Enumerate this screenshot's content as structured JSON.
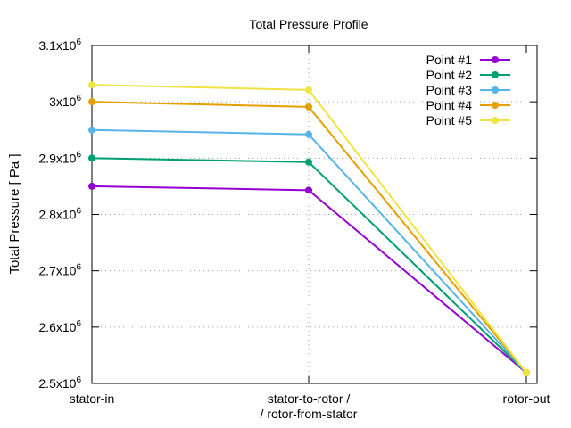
{
  "chart_data": {
    "type": "line",
    "title": "Total Pressure Profile",
    "xlabel": "",
    "ylabel": "Total Pressure [ Pa ]",
    "categories": [
      "stator-in",
      "stator-to-rotor /\n/ rotor-from-stator",
      "rotor-out"
    ],
    "category_lines": [
      [
        "stator-in"
      ],
      [
        "stator-to-rotor /",
        "/ rotor-from-stator"
      ],
      [
        "rotor-out"
      ]
    ],
    "ylim": [
      2500000,
      3100000
    ],
    "yticks": [
      2500000,
      2600000,
      2700000,
      2800000,
      2900000,
      3000000,
      3100000
    ],
    "ytick_labels": [
      [
        "2.5x10",
        "6"
      ],
      [
        "2.6x10",
        "6"
      ],
      [
        "2.7x10",
        "6"
      ],
      [
        "2.8x10",
        "6"
      ],
      [
        "2.9x10",
        "6"
      ],
      [
        "3x10",
        "6"
      ],
      [
        "3.1x10",
        "6"
      ]
    ],
    "grid": true,
    "legend_position": "top-right",
    "series": [
      {
        "name": "Point #1",
        "color": "#9400d3",
        "values": [
          2850000,
          2843000,
          2519000
        ]
      },
      {
        "name": "Point #2",
        "color": "#009e73",
        "values": [
          2900000,
          2893000,
          2519000
        ]
      },
      {
        "name": "Point #3",
        "color": "#56b4e9",
        "values": [
          2950000,
          2942000,
          2519000
        ]
      },
      {
        "name": "Point #4",
        "color": "#e69f00",
        "values": [
          3000000,
          2991000,
          2519000
        ]
      },
      {
        "name": "Point #5",
        "color": "#f0e442",
        "values": [
          3030000,
          3021000,
          2519000
        ]
      }
    ]
  }
}
